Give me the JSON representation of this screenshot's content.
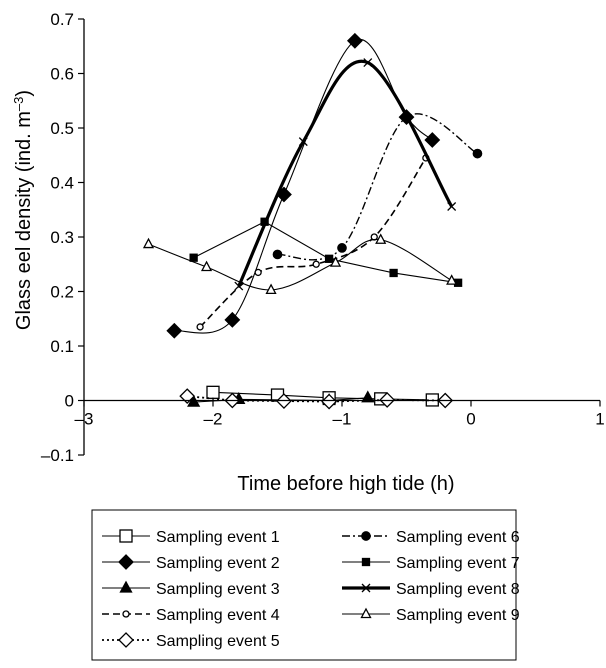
{
  "chart_data": {
    "type": "line",
    "xlabel": "Time before high tide (h)",
    "ylabel_main": "Glass eel density (ind. m",
    "ylabel_sup": "–3",
    "ylabel_close": ")",
    "xlim": [
      -3,
      1
    ],
    "ylim": [
      -0.1,
      0.7
    ],
    "x_ticks": [
      -3,
      -2,
      -1,
      0,
      1
    ],
    "x_tick_labels": [
      "–3",
      "–2",
      "–1",
      "0",
      "1"
    ],
    "y_ticks": [
      -0.1,
      0,
      0.1,
      0.2,
      0.3,
      0.4,
      0.5,
      0.6,
      0.7
    ],
    "y_tick_labels": [
      "–0.1",
      "0",
      "0.1",
      "0.2",
      "0.3",
      "0.4",
      "0.5",
      "0.6",
      "0.7"
    ],
    "grid": false,
    "legend_position": "bottom",
    "series": [
      {
        "name": "Sampling event 1",
        "marker": "square-open",
        "line": "solid-thin",
        "smooth": false,
        "x": [
          -2.0,
          -1.5,
          -1.1,
          -0.7,
          -0.3
        ],
        "y": [
          0.015,
          0.01,
          0.005,
          0.003,
          0.001
        ]
      },
      {
        "name": "Sampling event 2",
        "marker": "diamond-filled",
        "line": "solid-thin",
        "smooth": true,
        "x": [
          -2.3,
          -1.85,
          -1.45,
          -0.9,
          -0.5,
          -0.3
        ],
        "y": [
          0.128,
          0.148,
          0.378,
          0.66,
          0.52,
          0.478
        ]
      },
      {
        "name": "Sampling event 3",
        "marker": "triangle-filled",
        "line": "solid-thin",
        "smooth": false,
        "x": [
          -2.15,
          -1.8,
          -1.1,
          -0.8
        ],
        "y": [
          -0.003,
          0.002,
          0.0,
          0.005
        ]
      },
      {
        "name": "Sampling event 4",
        "marker": "circle-open",
        "line": "dashed",
        "smooth": true,
        "x": [
          -2.1,
          -1.65,
          -1.2,
          -0.75,
          -0.35
        ],
        "y": [
          0.135,
          0.235,
          0.25,
          0.3,
          0.445
        ]
      },
      {
        "name": "Sampling event 5",
        "marker": "diamond-open",
        "line": "dotted",
        "smooth": false,
        "x": [
          -2.2,
          -1.85,
          -1.45,
          -1.1,
          -0.65,
          -0.2
        ],
        "y": [
          0.008,
          0.0,
          -0.001,
          -0.002,
          0.001,
          0.0
        ]
      },
      {
        "name": "Sampling event 6",
        "marker": "circle-filled",
        "line": "dashdot",
        "smooth": true,
        "x": [
          -1.5,
          -1.0,
          -0.5,
          0.05
        ],
        "y": [
          0.268,
          0.28,
          0.52,
          0.453
        ]
      },
      {
        "name": "Sampling event 7",
        "marker": "square-filled",
        "line": "solid-thin",
        "smooth": false,
        "x": [
          -2.15,
          -1.6,
          -1.1,
          -0.6,
          -0.1
        ],
        "y": [
          0.262,
          0.328,
          0.26,
          0.234,
          0.216
        ]
      },
      {
        "name": "Sampling event 8",
        "marker": "x",
        "line": "solid-thick",
        "smooth": true,
        "x": [
          -1.8,
          -1.3,
          -0.8,
          -0.15
        ],
        "y": [
          0.21,
          0.475,
          0.62,
          0.356
        ]
      },
      {
        "name": "Sampling event 9",
        "marker": "triangle-open",
        "line": "solid-thin",
        "smooth": true,
        "x": [
          -2.5,
          -2.05,
          -1.55,
          -1.05,
          -0.7,
          -0.15
        ],
        "y": [
          0.287,
          0.245,
          0.203,
          0.253,
          0.295,
          0.22
        ]
      }
    ]
  }
}
